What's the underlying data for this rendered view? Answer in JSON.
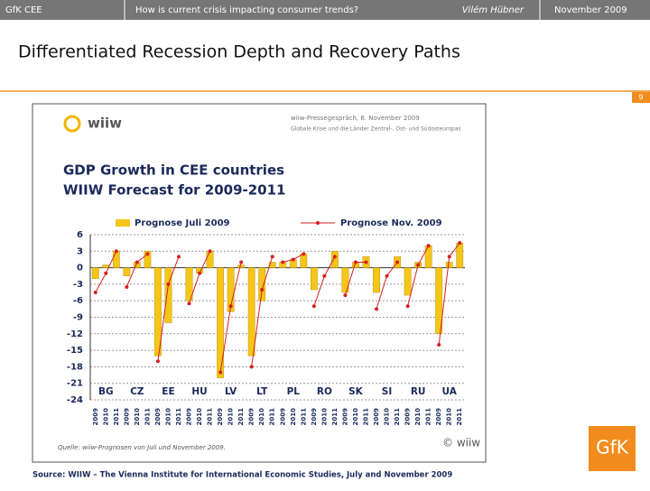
{
  "header": {
    "left": "GfK CEE",
    "topic": "How is current crisis impacting consumer trends?",
    "author": "Vilém Hübner",
    "date": "November  2009"
  },
  "slide_title": "Differentiated Recession Depth and Recovery Paths",
  "page_number": "9",
  "image": {
    "logo": "wiiw",
    "event": "wiiw-Pressegespräch, 6. November 2009",
    "subtitle": "Globale Krise und die Länder Zentral-, Ost- und Südosteuropas",
    "source": "Quelle: wiiw-Prognosen von Juli und November 2009.",
    "copyright": "© wiiw"
  },
  "source": "Source: WIIW – The Vienna Institute for International Economic Studies, July and November 2009",
  "brand": "GfK",
  "chart_data": {
    "type": "bar",
    "title": "GDP Growth in CEE countries",
    "subtitle": "WIIW Forecast for 2009-2011",
    "groups": [
      "BG",
      "CZ",
      "EE",
      "HU",
      "LV",
      "LT",
      "PL",
      "RO",
      "SK",
      "SI",
      "RU",
      "UA"
    ],
    "years": [
      "2009",
      "2010",
      "2011"
    ],
    "series": [
      {
        "name": "Prognose Juli 2009",
        "color": "#f5c518",
        "type": "bar",
        "values": [
          -2,
          0.5,
          3,
          -1.5,
          1,
          3,
          -16,
          -10,
          0,
          -6,
          -1,
          3,
          -20,
          -8,
          0.5,
          -16,
          -6,
          1,
          1,
          1.5,
          2.5,
          -4,
          0,
          3,
          -4.5,
          1,
          2,
          -4.5,
          0,
          2,
          -5,
          1,
          4,
          -12,
          1,
          4.5
        ]
      },
      {
        "name": "Prognose Nov. 2009",
        "color": "#d42020",
        "type": "line",
        "values": [
          -4.5,
          -1,
          3,
          -3.5,
          1,
          2.5,
          -17,
          -3,
          2,
          -6.5,
          -1,
          3,
          -19,
          -7,
          1,
          -18,
          -4,
          2,
          1,
          1.5,
          2.5,
          -7,
          -1.5,
          2,
          -5,
          1,
          1,
          -7.5,
          -1.5,
          1,
          -7,
          0.5,
          4,
          -14,
          2,
          4.5
        ]
      }
    ],
    "ylim": [
      -24,
      6
    ],
    "yticks": [
      6,
      3,
      0,
      -3,
      -6,
      -9,
      -12,
      -15,
      -18,
      -21,
      -24
    ],
    "grid": true
  }
}
